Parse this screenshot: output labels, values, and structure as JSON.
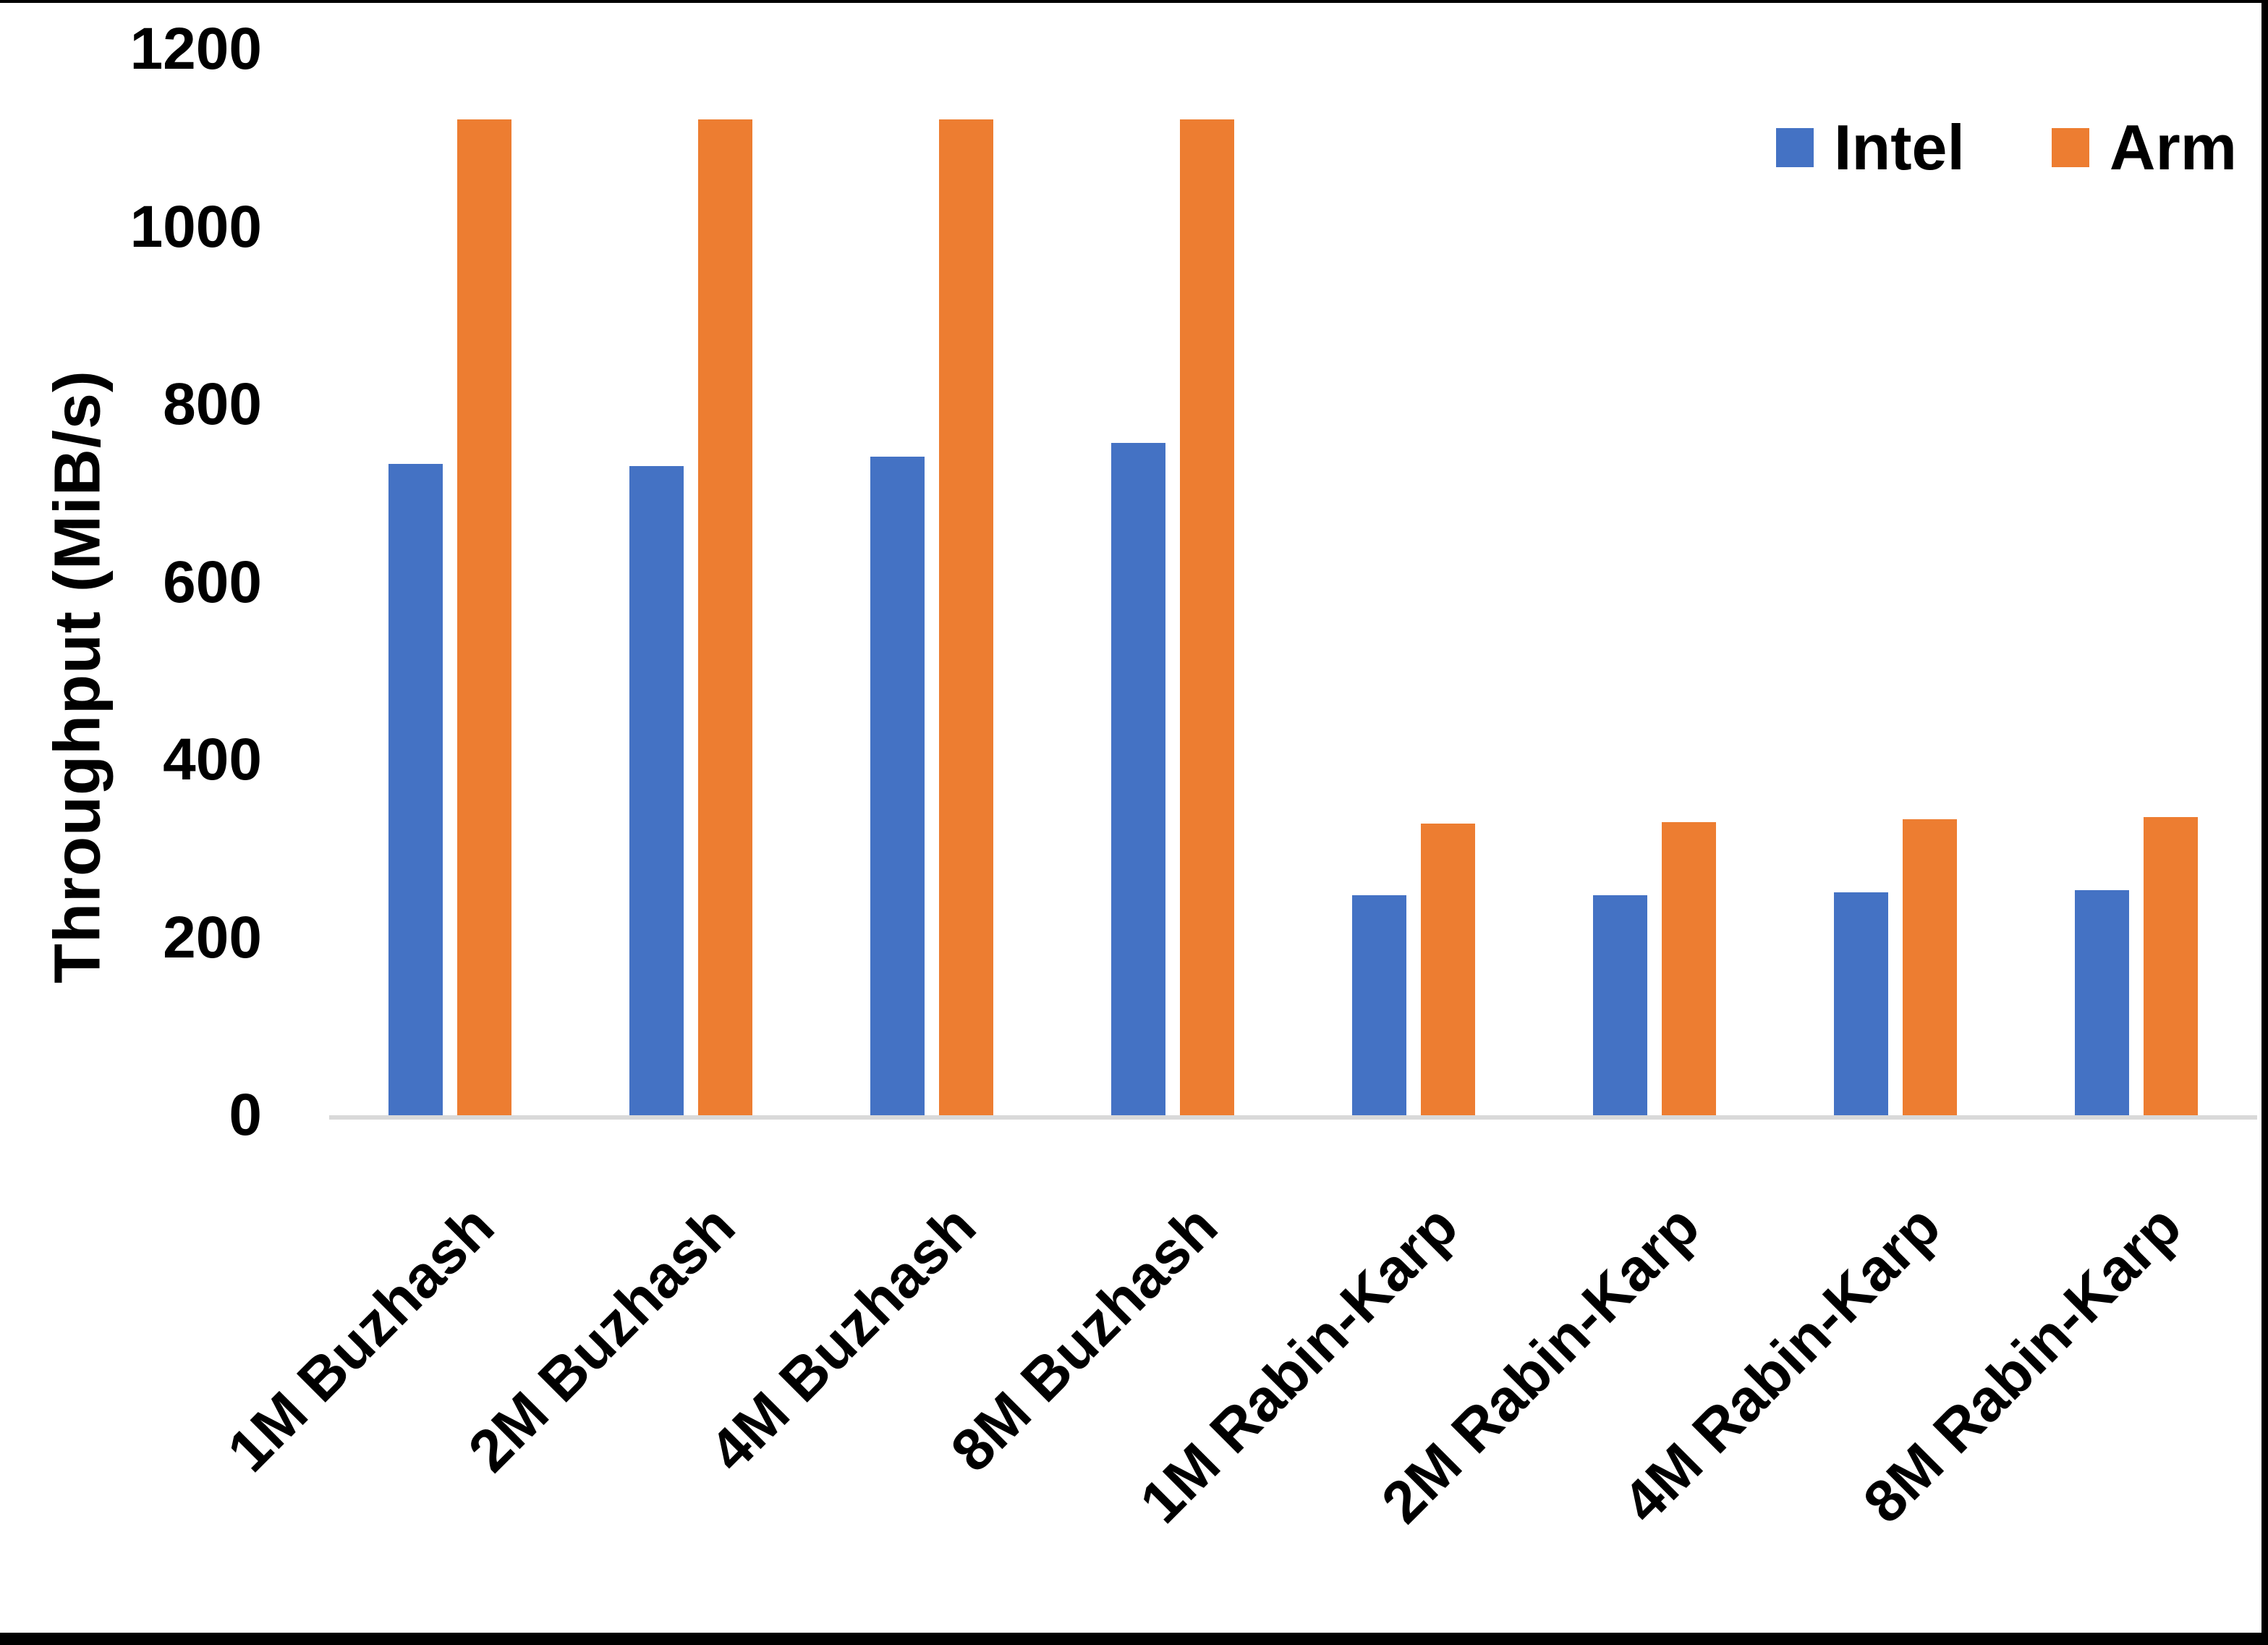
{
  "chart_data": {
    "type": "bar",
    "title": "",
    "xlabel": "",
    "ylabel": "Throughput (MiB/s)",
    "ylim": [
      0,
      1200
    ],
    "yticks": [
      0,
      200,
      400,
      600,
      800,
      1000,
      1200
    ],
    "grid": false,
    "legend_position": "top-right",
    "categories": [
      "1M Buzhash",
      "2M Buzhash",
      "4M Buzhash",
      "8M Buzhash",
      "1M Rabin-Karp",
      "2M Rabin-Karp",
      "4M Rabin-Karp",
      "8M Rabin-Karp"
    ],
    "series": [
      {
        "name": "Intel",
        "color": "#4472C4",
        "values": [
          733,
          731,
          741,
          757,
          248,
          248,
          251,
          253
        ]
      },
      {
        "name": "Arm",
        "color": "#ED7D31",
        "values": [
          1121,
          1121,
          1121,
          1121,
          328,
          330,
          333,
          336
        ]
      }
    ],
    "axis_line_color": "#D9D9D9",
    "text_color": "#000000",
    "background_color": "#FFFFFF",
    "frame_color": "#000000"
  }
}
